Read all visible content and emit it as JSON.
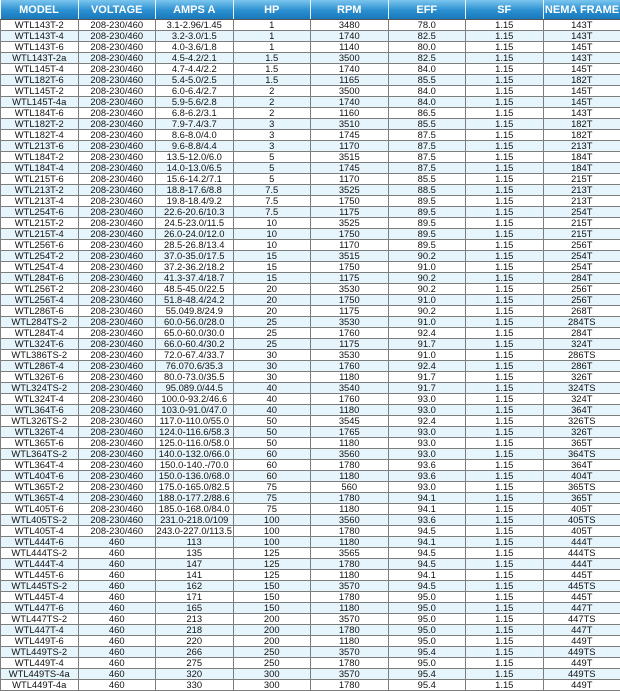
{
  "headers": [
    "MODEL",
    "VOLTAGE",
    "AMPS  A",
    "HP",
    "RPM",
    "EFF",
    "SF",
    "NEMA FRAME"
  ],
  "colors": {
    "header": "#2a8fd0",
    "alt_row": "#e6f4fb"
  },
  "rows": [
    [
      "WTL143T-2",
      "208-230/460",
      "3.1-2.96/1.45",
      "1",
      "3480",
      "78.0",
      "1.15",
      "143T"
    ],
    [
      "WTL143T-4",
      "208-230/460",
      "3.2-3.0/1.5",
      "1",
      "1740",
      "82.5",
      "1.15",
      "143T"
    ],
    [
      "WTL143T-6",
      "208-230/460",
      "4.0-3.6/1.8",
      "1",
      "1140",
      "80.0",
      "1.15",
      "145T"
    ],
    [
      "WTL143T-2a",
      "208-230/460",
      "4.5-4.2/2.1",
      "1.5",
      "3500",
      "82.5",
      "1.15",
      "143T"
    ],
    [
      "WTL145T-4",
      "208-230/460",
      "4.7-4.4/2.2",
      "1.5",
      "1740",
      "84.0",
      "1.15",
      "145T"
    ],
    [
      "WTL182T-6",
      "208-230/460",
      "5.4-5.0/2.5",
      "1.5",
      "1165",
      "85.5",
      "1.15",
      "182T"
    ],
    [
      "WTL145T-2",
      "208-230/460",
      "6.0-6.4/2.7",
      "2",
      "3500",
      "84.0",
      "1.15",
      "145T"
    ],
    [
      "WTL145T-4a",
      "208-230/460",
      "5.9-5.6/2.8",
      "2",
      "1740",
      "84.0",
      "1.15",
      "145T"
    ],
    [
      "WTL184T-6",
      "208-230/460",
      "6.8-6.2/3.1",
      "2",
      "1160",
      "86.5",
      "1.15",
      "143T"
    ],
    [
      "WTL182T-2",
      "208-230/460",
      "7.9-7.4/3.7",
      "3",
      "3510",
      "85.5",
      "1.15",
      "182T"
    ],
    [
      "WTL182T-4",
      "208-230/460",
      "8.6-8.0/4.0",
      "3",
      "1745",
      "87.5",
      "1.15",
      "182T"
    ],
    [
      "WTL213T-6",
      "208-230/460",
      "9.6-8.8/4.4",
      "3",
      "1170",
      "87.5",
      "1.15",
      "213T"
    ],
    [
      "WTL184T-2",
      "208-230/460",
      "13.5-12.0/6.0",
      "5",
      "3515",
      "87.5",
      "1.15",
      "184T"
    ],
    [
      "WTL184T-4",
      "208-230/460",
      "14.0-13.0/6.5",
      "5",
      "1745",
      "87.5",
      "1.15",
      "184T"
    ],
    [
      "WTL215T-6",
      "208-230/460",
      "15.6-14.2/7.1",
      "5",
      "1170",
      "85.5",
      "1.15",
      "215T"
    ],
    [
      "WTL213T-2",
      "208-230/460",
      "18.8-17.6/8.8",
      "7.5",
      "3525",
      "88.5",
      "1.15",
      "213T"
    ],
    [
      "WTL213T-4",
      "208-230/460",
      "19.8-18.4/9.2",
      "7.5",
      "1750",
      "89.5",
      "1.15",
      "213T"
    ],
    [
      "WTL254T-6",
      "208-230/460",
      "22.6-20.6/10.3",
      "7.5",
      "1175",
      "89.5",
      "1.15",
      "254T"
    ],
    [
      "WTL215T-2",
      "208-230/460",
      "24.5-23.0/11.5",
      "10",
      "3525",
      "89.5",
      "1.15",
      "215T"
    ],
    [
      "WTL215T-4",
      "208-230/460",
      "26.0-24.0/12.0",
      "10",
      "1750",
      "89.5",
      "1.15",
      "215T"
    ],
    [
      "WTL256T-6",
      "208-230/460",
      "28.5-26.8/13.4",
      "10",
      "1170",
      "89.5",
      "1.15",
      "256T"
    ],
    [
      "WTL254T-2",
      "208-230/460",
      "37.0-35.0/17.5",
      "15",
      "3515",
      "90.2",
      "1.15",
      "254T"
    ],
    [
      "WTL254T-4",
      "208-230/460",
      "37.2-36.2/18.2",
      "15",
      "1750",
      "91.0",
      "1.15",
      "254T"
    ],
    [
      "WTL284T-6",
      "208-230/460",
      "41.3-37.4/18.7",
      "15",
      "1175",
      "90.2",
      "1.15",
      "284T"
    ],
    [
      "WTL256T-2",
      "208-230/460",
      "48.5-45.0/22.5",
      "20",
      "3530",
      "90.2",
      "1.15",
      "256T"
    ],
    [
      "WTL256T-4",
      "208-230/460",
      "51.8-48.4/24.2",
      "20",
      "1750",
      "91.0",
      "1.15",
      "256T"
    ],
    [
      "WTL286T-6",
      "208-230/460",
      "55.049.8/24.9",
      "20",
      "1175",
      "90.2",
      "1.15",
      "268T"
    ],
    [
      "WTL284TS-2",
      "208-230/460",
      "60.0-56.0/28.0",
      "25",
      "3530",
      "91.0",
      "1.15",
      "284TS"
    ],
    [
      "WTL284T-4",
      "208-230/460",
      "65.0-60.0/30.0",
      "25",
      "1760",
      "92.4",
      "1.15",
      "284T"
    ],
    [
      "WTL324T-6",
      "208-230/460",
      "66.0-60.4/30.2",
      "25",
      "1175",
      "91.7",
      "1.15",
      "324T"
    ],
    [
      "WTL386TS-2",
      "208-230/460",
      "72.0-67.4/33.7",
      "30",
      "3530",
      "91.0",
      "1.15",
      "286TS"
    ],
    [
      "WTL286T-4",
      "208-230/460",
      "76.070.6/35.3",
      "30",
      "1760",
      "92.4",
      "1.15",
      "286T"
    ],
    [
      "WTL326T-6",
      "208-230/460",
      "80.0-73.0/35.5",
      "30",
      "1180",
      "91.7",
      "1.15",
      "326T"
    ],
    [
      "WTL324TS-2",
      "208-230/460",
      "95.089.0/44.5",
      "40",
      "3540",
      "91.7",
      "1.15",
      "324TS"
    ],
    [
      "WTL324T-4",
      "208-230/460",
      "100.0-93.2/46.6",
      "40",
      "1760",
      "93.0",
      "1.15",
      "324T"
    ],
    [
      "WTL364T-6",
      "208-230/460",
      "103.0-91.0/47.0",
      "40",
      "1180",
      "93.0",
      "1.15",
      "364T"
    ],
    [
      "WTL326TS-2",
      "208-230/460",
      "117.0-110.0/55.0",
      "50",
      "3545",
      "92.4",
      "1.15",
      "326TS"
    ],
    [
      "WTL326T-4",
      "208-230/460",
      "124.0-116.6/58.3",
      "50",
      "1765",
      "93.0",
      "1.15",
      "326T"
    ],
    [
      "WTL365T-6",
      "208-230/460",
      "125.0-116.0/58.0",
      "50",
      "1180",
      "93.0",
      "1.15",
      "365T"
    ],
    [
      "WTL364TS-2",
      "208-230/460",
      "140.0-132.0/66.0",
      "60",
      "3560",
      "93.0",
      "1.15",
      "364TS"
    ],
    [
      "WTL364T-4",
      "208-230/460",
      "150.0-140.-/70.0",
      "60",
      "1780",
      "93.6",
      "1.15",
      "364T"
    ],
    [
      "WTL404T-6",
      "208-230/460",
      "150.0-136.0/68.0",
      "60",
      "1180",
      "93.6",
      "1.15",
      "404T"
    ],
    [
      "WTL365T-2",
      "208-230/460",
      "175.0-165.0/82.5",
      "75",
      "560",
      "93.0",
      "1.15",
      "365TS"
    ],
    [
      "WTL365T-4",
      "208-230/460",
      "188.0-177.2/88.6",
      "75",
      "1780",
      "94.1",
      "1.15",
      "365T"
    ],
    [
      "WTL405T-6",
      "208-230/460",
      "185.0-168.0/84.0",
      "75",
      "1180",
      "94.1",
      "1.15",
      "405T"
    ],
    [
      "WTL405TS-2",
      "208-230/460",
      "231.0-218.0/109",
      "100",
      "3560",
      "93.6",
      "1.15",
      "405TS"
    ],
    [
      "WTL405T-4",
      "208-230/460",
      "243.0-227.0/113.5",
      "100",
      "1780",
      "94.5",
      "1.15",
      "405T"
    ],
    [
      "WTL444T-6",
      "460",
      "113",
      "100",
      "1180",
      "94.1",
      "1.15",
      "444T"
    ],
    [
      "WTL444TS-2",
      "460",
      "135",
      "125",
      "3565",
      "94.5",
      "1.15",
      "444TS"
    ],
    [
      "WTL444T-4",
      "460",
      "147",
      "125",
      "1780",
      "94.5",
      "1.15",
      "444T"
    ],
    [
      "WTL445T-6",
      "460",
      "141",
      "125",
      "1180",
      "94.1",
      "1.15",
      "445T"
    ],
    [
      "WTL445TS-2",
      "460",
      "162",
      "150",
      "3570",
      "94.5",
      "1.15",
      "445TS"
    ],
    [
      "WTL445T-4",
      "460",
      "171",
      "150",
      "1780",
      "95.0",
      "1.15",
      "445T"
    ],
    [
      "WTL447T-6",
      "460",
      "165",
      "150",
      "1180",
      "95.0",
      "1.15",
      "447T"
    ],
    [
      "WTL447TS-2",
      "460",
      "213",
      "200",
      "3570",
      "95.0",
      "1.15",
      "447TS"
    ],
    [
      "WTL447T-4",
      "460",
      "218",
      "200",
      "1780",
      "95.0",
      "1.15",
      "447T"
    ],
    [
      "WTL449T-6",
      "460",
      "220",
      "200",
      "1180",
      "95.0",
      "1.15",
      "449T"
    ],
    [
      "WTL449TS-2",
      "460",
      "266",
      "250",
      "3570",
      "95.4",
      "1.15",
      "449TS"
    ],
    [
      "WTL449T-4",
      "460",
      "275",
      "250",
      "1780",
      "95.0",
      "1.15",
      "449T"
    ],
    [
      "WTL449TS-4a",
      "460",
      "320",
      "300",
      "3570",
      "95.4",
      "1.15",
      "449TS"
    ],
    [
      "WTL449T-4a",
      "460",
      "330",
      "300",
      "1780",
      "95.4",
      "1.15",
      "449T"
    ]
  ]
}
